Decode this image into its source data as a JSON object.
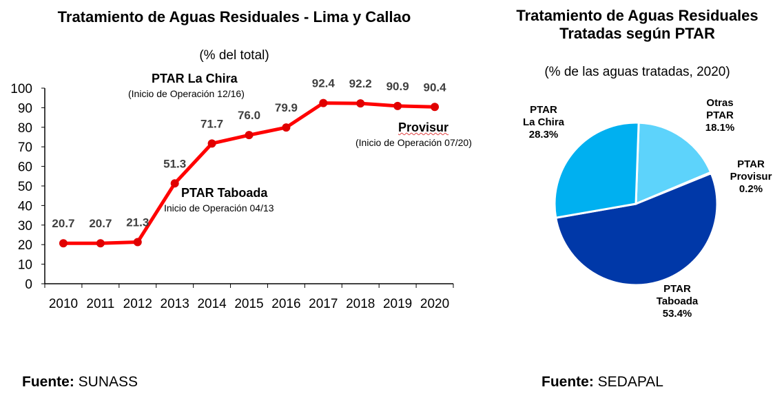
{
  "chart_data": [
    {
      "type": "line",
      "title": "Tratamiento de Aguas Residuales - Lima y Callao",
      "subtitle": "(% del total)",
      "xlabel": "",
      "ylabel": "",
      "categories": [
        "2010",
        "2011",
        "2012",
        "2013",
        "2014",
        "2015",
        "2016",
        "2017",
        "2018",
        "2019",
        "2020"
      ],
      "values": [
        20.7,
        20.7,
        21.3,
        51.3,
        71.7,
        76.0,
        79.9,
        92.4,
        92.2,
        90.9,
        90.4
      ],
      "data_labels": [
        "20.7",
        "20.7",
        "21.3",
        "51.3",
        "71.7",
        "76.0",
        "79.9",
        "92.4",
        "92.2",
        "90.9",
        "90.4"
      ],
      "ylim": [
        0,
        100
      ],
      "yticks": [
        "0",
        "10",
        "20",
        "30",
        "40",
        "50",
        "60",
        "70",
        "80",
        "90",
        "100"
      ],
      "grid": false,
      "color": "#ff0000",
      "annotations": [
        {
          "title": "PTAR La Chira",
          "text": "(Inicio de Operación 12/16)",
          "color": "#00b050"
        },
        {
          "title": "PTAR Taboada",
          "text": "Inicio de Operación 04/13",
          "color": "#c00000"
        },
        {
          "title": "Provisur",
          "text": "(Inicio de Operación 07/20)",
          "color": "#1f2f6f"
        }
      ]
    },
    {
      "type": "pie",
      "title": "Tratamiento de Aguas Residuales Tratadas según PTAR",
      "subtitle": "(% de las aguas tratadas, 2020)",
      "slices": [
        {
          "name": "Otras PTAR",
          "line1": "Otras",
          "line2": "PTAR",
          "value": 18.1,
          "label": "18.1%",
          "color": "#5dd3fb"
        },
        {
          "name": "PTAR Provisur",
          "line1": "PTAR",
          "line2": "Provisur",
          "value": 0.2,
          "label": "0.2%",
          "color": "#2f75b5"
        },
        {
          "name": "PTAR Taboada",
          "line1": "PTAR",
          "line2": "Taboada",
          "value": 53.4,
          "label": "53.4%",
          "color": "#0038a8"
        },
        {
          "name": "PTAR La Chira",
          "line1": "PTAR",
          "line2": "La Chira",
          "value": 28.3,
          "label": "28.3%",
          "color": "#00b0f0"
        }
      ]
    }
  ],
  "sources": [
    {
      "label": "Fuente:",
      "value": " SUNASS"
    },
    {
      "label": "Fuente:",
      "value": " SEDAPAL"
    }
  ]
}
